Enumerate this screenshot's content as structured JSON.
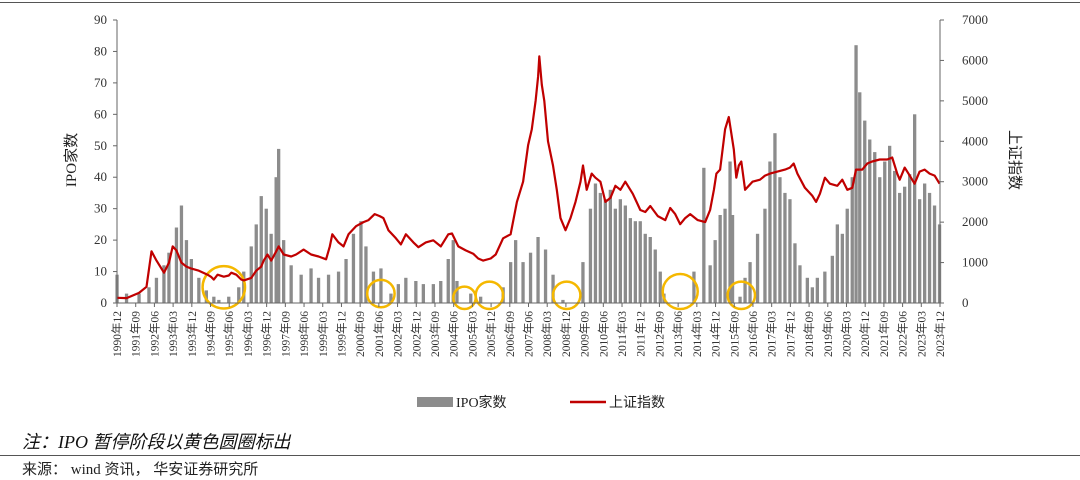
{
  "chart_data": {
    "type": "bar+line",
    "series": [
      {
        "name": "IPO家数",
        "type": "bar",
        "axis": "left",
        "color": "#8c8c8c"
      },
      {
        "name": "上证指数",
        "type": "line",
        "axis": "right",
        "color": "#c00000"
      }
    ],
    "y_left": {
      "label": "IPO家数",
      "range": [
        0,
        90
      ],
      "ticks": [
        "0",
        "10",
        "20",
        "30",
        "40",
        "50",
        "60",
        "70",
        "80",
        "90"
      ]
    },
    "y_right": {
      "label": "上证指数",
      "range": [
        0,
        7000
      ],
      "ticks": [
        "0",
        "1000",
        "2000",
        "3000",
        "4000",
        "5000",
        "6000",
        "7000"
      ]
    },
    "x_start": "1990-12",
    "x_end": "2023-12",
    "x_ticks": [
      "1990年12",
      "1991年09",
      "1992年06",
      "1993年03",
      "1993年12",
      "1994年09",
      "1995年06",
      "1996年03",
      "1996年12",
      "1997年09",
      "1998年06",
      "1999年03",
      "1999年12",
      "2000年09",
      "2001年06",
      "2002年03",
      "2002年12",
      "2003年09",
      "2004年06",
      "2005年03",
      "2005年12",
      "2006年09",
      "2007年06",
      "2008年03",
      "2008年12",
      "2009年09",
      "2010年06",
      "2011年03",
      "2011年12",
      "2012年09",
      "2013年06",
      "2014年03",
      "2014年12",
      "2015年09",
      "2016年06",
      "2017年03",
      "2017年12",
      "2018年09",
      "2019年06",
      "2020年03",
      "2020年12",
      "2021年09",
      "2022年06",
      "2023年03",
      "2023年12"
    ],
    "ipo_counts": [
      [
        1990.92,
        9
      ],
      [
        1991.3,
        3
      ],
      [
        1991.8,
        3
      ],
      [
        1992.2,
        5
      ],
      [
        1992.5,
        8
      ],
      [
        1992.8,
        12
      ],
      [
        1993.0,
        16
      ],
      [
        1993.3,
        24
      ],
      [
        1993.5,
        31
      ],
      [
        1993.7,
        20
      ],
      [
        1993.9,
        14
      ],
      [
        1994.2,
        8
      ],
      [
        1994.5,
        4
      ],
      [
        1994.8,
        2
      ],
      [
        1995.0,
        1
      ],
      [
        1995.4,
        2
      ],
      [
        1995.8,
        5
      ],
      [
        1996.0,
        10
      ],
      [
        1996.3,
        18
      ],
      [
        1996.5,
        25
      ],
      [
        1996.7,
        34
      ],
      [
        1996.9,
        30
      ],
      [
        1997.1,
        22
      ],
      [
        1997.3,
        40
      ],
      [
        1997.4,
        49
      ],
      [
        1997.6,
        20
      ],
      [
        1997.9,
        12
      ],
      [
        1998.3,
        9
      ],
      [
        1998.7,
        11
      ],
      [
        1999.0,
        8
      ],
      [
        1999.4,
        9
      ],
      [
        1999.8,
        10
      ],
      [
        2000.1,
        14
      ],
      [
        2000.4,
        22
      ],
      [
        2000.7,
        26
      ],
      [
        2000.9,
        18
      ],
      [
        2001.2,
        10
      ],
      [
        2001.5,
        11
      ],
      [
        2001.9,
        3
      ],
      [
        2002.2,
        6
      ],
      [
        2002.5,
        8
      ],
      [
        2002.9,
        7
      ],
      [
        2003.2,
        6
      ],
      [
        2003.6,
        6
      ],
      [
        2003.9,
        7
      ],
      [
        2004.2,
        14
      ],
      [
        2004.4,
        20
      ],
      [
        2004.55,
        7
      ],
      [
        2005.1,
        3
      ],
      [
        2005.5,
        2
      ],
      [
        2006.4,
        5
      ],
      [
        2006.7,
        13
      ],
      [
        2006.9,
        20
      ],
      [
        2007.2,
        13
      ],
      [
        2007.5,
        16
      ],
      [
        2007.8,
        21
      ],
      [
        2008.1,
        17
      ],
      [
        2008.4,
        9
      ],
      [
        2008.8,
        1
      ],
      [
        2009.6,
        13
      ],
      [
        2009.9,
        30
      ],
      [
        2010.1,
        38
      ],
      [
        2010.3,
        35
      ],
      [
        2010.5,
        33
      ],
      [
        2010.7,
        36
      ],
      [
        2010.9,
        30
      ],
      [
        2011.1,
        33
      ],
      [
        2011.3,
        31
      ],
      [
        2011.5,
        27
      ],
      [
        2011.7,
        26
      ],
      [
        2011.9,
        26
      ],
      [
        2012.1,
        22
      ],
      [
        2012.3,
        21
      ],
      [
        2012.5,
        17
      ],
      [
        2012.7,
        10
      ],
      [
        2012.85,
        3
      ],
      [
        2014.05,
        10
      ],
      [
        2014.45,
        43
      ],
      [
        2014.7,
        12
      ],
      [
        2014.9,
        20
      ],
      [
        2015.1,
        28
      ],
      [
        2015.3,
        30
      ],
      [
        2015.5,
        45
      ],
      [
        2015.6,
        28
      ],
      [
        2015.9,
        2
      ],
      [
        2016.1,
        8
      ],
      [
        2016.3,
        13
      ],
      [
        2016.6,
        22
      ],
      [
        2016.9,
        30
      ],
      [
        2017.1,
        45
      ],
      [
        2017.3,
        54
      ],
      [
        2017.5,
        40
      ],
      [
        2017.7,
        35
      ],
      [
        2017.9,
        33
      ],
      [
        2018.1,
        19
      ],
      [
        2018.3,
        12
      ],
      [
        2018.6,
        8
      ],
      [
        2018.8,
        5
      ],
      [
        2019.0,
        8
      ],
      [
        2019.3,
        10
      ],
      [
        2019.6,
        15
      ],
      [
        2019.8,
        25
      ],
      [
        2020.0,
        22
      ],
      [
        2020.2,
        30
      ],
      [
        2020.4,
        40
      ],
      [
        2020.55,
        82
      ],
      [
        2020.7,
        67
      ],
      [
        2020.9,
        58
      ],
      [
        2021.1,
        52
      ],
      [
        2021.3,
        48
      ],
      [
        2021.5,
        40
      ],
      [
        2021.7,
        45
      ],
      [
        2021.9,
        50
      ],
      [
        2022.1,
        42
      ],
      [
        2022.3,
        35
      ],
      [
        2022.5,
        37
      ],
      [
        2022.7,
        41
      ],
      [
        2022.9,
        60
      ],
      [
        2023.1,
        33
      ],
      [
        2023.3,
        38
      ],
      [
        2023.5,
        35
      ],
      [
        2023.7,
        31
      ],
      [
        2023.9,
        25
      ]
    ],
    "sse_index": [
      [
        1990.92,
        128
      ],
      [
        1991.3,
        120
      ],
      [
        1991.8,
        250
      ],
      [
        1992.1,
        400
      ],
      [
        1992.3,
        1280
      ],
      [
        1992.5,
        1050
      ],
      [
        1992.8,
        750
      ],
      [
        1993.0,
        1000
      ],
      [
        1993.15,
        1400
      ],
      [
        1993.3,
        1300
      ],
      [
        1993.5,
        1000
      ],
      [
        1993.7,
        900
      ],
      [
        1993.9,
        850
      ],
      [
        1994.2,
        800
      ],
      [
        1994.55,
        700
      ],
      [
        1994.7,
        640
      ],
      [
        1994.8,
        580
      ],
      [
        1994.95,
        700
      ],
      [
        1995.2,
        650
      ],
      [
        1995.4,
        680
      ],
      [
        1995.5,
        750
      ],
      [
        1995.7,
        700
      ],
      [
        1995.9,
        580
      ],
      [
        1996.0,
        560
      ],
      [
        1996.3,
        620
      ],
      [
        1996.5,
        800
      ],
      [
        1996.7,
        900
      ],
      [
        1996.8,
        1050
      ],
      [
        1996.95,
        1200
      ],
      [
        1997.1,
        1050
      ],
      [
        1997.3,
        1280
      ],
      [
        1997.4,
        1400
      ],
      [
        1997.6,
        1200
      ],
      [
        1997.9,
        1150
      ],
      [
        1998.1,
        1200
      ],
      [
        1998.4,
        1320
      ],
      [
        1998.7,
        1200
      ],
      [
        1999.0,
        1150
      ],
      [
        1999.3,
        1080
      ],
      [
        1999.45,
        1400
      ],
      [
        1999.55,
        1700
      ],
      [
        1999.8,
        1500
      ],
      [
        2000.0,
        1400
      ],
      [
        2000.2,
        1700
      ],
      [
        2000.5,
        1900
      ],
      [
        2000.8,
        2000
      ],
      [
        2001.0,
        2050
      ],
      [
        2001.25,
        2200
      ],
      [
        2001.45,
        2150
      ],
      [
        2001.6,
        2100
      ],
      [
        2001.8,
        1800
      ],
      [
        2002.1,
        1600
      ],
      [
        2002.3,
        1450
      ],
      [
        2002.5,
        1700
      ],
      [
        2002.8,
        1500
      ],
      [
        2003.0,
        1380
      ],
      [
        2003.3,
        1500
      ],
      [
        2003.6,
        1550
      ],
      [
        2003.9,
        1400
      ],
      [
        2004.2,
        1700
      ],
      [
        2004.35,
        1720
      ],
      [
        2004.6,
        1400
      ],
      [
        2004.9,
        1300
      ],
      [
        2005.2,
        1220
      ],
      [
        2005.4,
        1100
      ],
      [
        2005.6,
        1050
      ],
      [
        2005.9,
        1100
      ],
      [
        2006.1,
        1200
      ],
      [
        2006.4,
        1600
      ],
      [
        2006.7,
        1700
      ],
      [
        2006.95,
        2500
      ],
      [
        2007.2,
        3000
      ],
      [
        2007.4,
        3900
      ],
      [
        2007.55,
        4300
      ],
      [
        2007.7,
        5000
      ],
      [
        2007.8,
        5600
      ],
      [
        2007.85,
        6100
      ],
      [
        2007.95,
        5400
      ],
      [
        2008.05,
        5000
      ],
      [
        2008.2,
        4000
      ],
      [
        2008.4,
        3400
      ],
      [
        2008.55,
        2800
      ],
      [
        2008.7,
        2100
      ],
      [
        2008.9,
        1800
      ],
      [
        2009.1,
        2100
      ],
      [
        2009.3,
        2500
      ],
      [
        2009.5,
        3000
      ],
      [
        2009.6,
        3400
      ],
      [
        2009.75,
        2800
      ],
      [
        2009.95,
        3200
      ],
      [
        2010.1,
        3100
      ],
      [
        2010.3,
        3000
      ],
      [
        2010.5,
        2500
      ],
      [
        2010.7,
        2600
      ],
      [
        2010.9,
        2900
      ],
      [
        2011.1,
        2800
      ],
      [
        2011.3,
        3000
      ],
      [
        2011.6,
        2700
      ],
      [
        2011.9,
        2300
      ],
      [
        2012.1,
        2250
      ],
      [
        2012.3,
        2400
      ],
      [
        2012.6,
        2150
      ],
      [
        2012.9,
        2050
      ],
      [
        2013.1,
        2350
      ],
      [
        2013.3,
        2200
      ],
      [
        2013.5,
        1950
      ],
      [
        2013.7,
        2100
      ],
      [
        2013.9,
        2200
      ],
      [
        2014.2,
        2050
      ],
      [
        2014.5,
        2000
      ],
      [
        2014.7,
        2300
      ],
      [
        2014.85,
        2800
      ],
      [
        2014.95,
        3200
      ],
      [
        2015.1,
        3300
      ],
      [
        2015.3,
        4300
      ],
      [
        2015.45,
        4600
      ],
      [
        2015.55,
        4200
      ],
      [
        2015.65,
        3800
      ],
      [
        2015.75,
        3100
      ],
      [
        2015.85,
        3400
      ],
      [
        2015.95,
        3500
      ],
      [
        2016.1,
        2800
      ],
      [
        2016.4,
        3000
      ],
      [
        2016.7,
        3050
      ],
      [
        2016.9,
        3150
      ],
      [
        2017.1,
        3200
      ],
      [
        2017.4,
        3250
      ],
      [
        2017.7,
        3300
      ],
      [
        2017.9,
        3350
      ],
      [
        2018.05,
        3450
      ],
      [
        2018.2,
        3200
      ],
      [
        2018.5,
        2850
      ],
      [
        2018.8,
        2650
      ],
      [
        2018.95,
        2500
      ],
      [
        2019.1,
        2700
      ],
      [
        2019.3,
        3100
      ],
      [
        2019.5,
        2950
      ],
      [
        2019.8,
        2900
      ],
      [
        2020.0,
        3050
      ],
      [
        2020.2,
        2800
      ],
      [
        2020.4,
        2850
      ],
      [
        2020.55,
        3300
      ],
      [
        2020.8,
        3300
      ],
      [
        2021.0,
        3450
      ],
      [
        2021.2,
        3500
      ],
      [
        2021.5,
        3550
      ],
      [
        2021.8,
        3550
      ],
      [
        2022.0,
        3600
      ],
      [
        2022.2,
        3200
      ],
      [
        2022.3,
        3050
      ],
      [
        2022.5,
        3350
      ],
      [
        2022.7,
        3150
      ],
      [
        2022.9,
        2950
      ],
      [
        2023.1,
        3250
      ],
      [
        2023.3,
        3300
      ],
      [
        2023.5,
        3200
      ],
      [
        2023.7,
        3150
      ],
      [
        2023.9,
        2950
      ]
    ],
    "highlight_circles": [
      {
        "center": 1995.2,
        "value": 5,
        "r_years": 0.85
      },
      {
        "center": 2001.5,
        "value": 3,
        "r_years": 0.55
      },
      {
        "center": 2004.85,
        "value": 0.5,
        "r_years": 0.45
      },
      {
        "center": 2005.85,
        "value": 1.5,
        "r_years": 0.55
      },
      {
        "center": 2008.95,
        "value": 2,
        "r_years": 0.55
      },
      {
        "center": 2013.5,
        "value": 3,
        "r_years": 0.7
      },
      {
        "center": 2015.95,
        "value": 2,
        "r_years": 0.55
      }
    ],
    "highlight_color": "#f5b800",
    "grid": false,
    "legend_position": "bottom-center"
  },
  "legend": {
    "ipo": "IPO家数",
    "sse": "上证指数"
  },
  "note": "注：IPO 暂停阶段以黄色圆圈标出",
  "source": "来源： wind 资讯， 华安证券研究所"
}
